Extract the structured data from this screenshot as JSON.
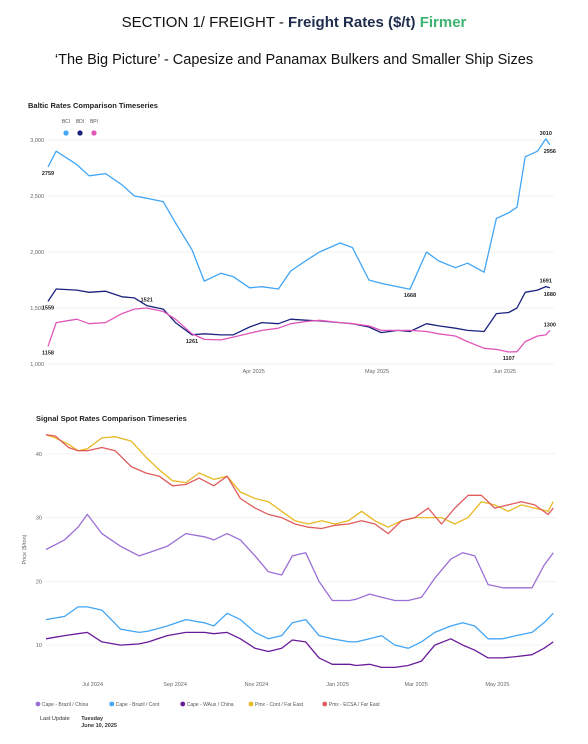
{
  "header": {
    "prefix": "SECTION 1/ FREIGHT - ",
    "main": "Freight Rates ($/t)",
    "accent": "Firmer",
    "subtitle": "‘The Big Picture’ - Capesize and Panamax Bulkers and Smaller Ship Sizes"
  },
  "colors": {
    "accent_green": "#3cb371",
    "title_navy": "#1f2d4d"
  },
  "chart_data": [
    {
      "type": "line",
      "title": "Baltic Rates Comparison Timeseries",
      "x_axis": {
        "ticks": [
          "Apr 2025",
          "May 2025",
          "Jun 2025"
        ],
        "range": [
          "2025-02-10",
          "2025-06-13"
        ]
      },
      "y_axis": {
        "ticks": [
          "1,000",
          "1,500",
          "2,000",
          "2,500",
          "3,000"
        ],
        "range": [
          1000,
          3000
        ]
      },
      "legend_position": "top-left",
      "series": [
        {
          "name": "BCI",
          "color": "#42a5f5",
          "dates": [
            "2025-02-10",
            "2025-02-12",
            "2025-02-17",
            "2025-02-20",
            "2025-02-24",
            "2025-02-28",
            "2025-03-03",
            "2025-03-06",
            "2025-03-10",
            "2025-03-13",
            "2025-03-17",
            "2025-03-20",
            "2025-03-24",
            "2025-03-27",
            "2025-03-31",
            "2025-04-03",
            "2025-04-07",
            "2025-04-10",
            "2025-04-14",
            "2025-04-17",
            "2025-04-22",
            "2025-04-25",
            "2025-04-29",
            "2025-05-02",
            "2025-05-06",
            "2025-05-09",
            "2025-05-13",
            "2025-05-16",
            "2025-05-20",
            "2025-05-23",
            "2025-05-27",
            "2025-05-30",
            "2025-06-02",
            "2025-06-04",
            "2025-06-06",
            "2025-06-09",
            "2025-06-11",
            "2025-06-12"
          ],
          "values": [
            2759,
            2900,
            2780,
            2680,
            2700,
            2600,
            2500,
            2480,
            2450,
            2260,
            2020,
            1740,
            1810,
            1780,
            1680,
            1690,
            1670,
            1830,
            1930,
            2000,
            2080,
            2040,
            1750,
            1720,
            1690,
            1668,
            2000,
            1920,
            1860,
            1900,
            1820,
            2300,
            2350,
            2400,
            2850,
            2900,
            3010,
            2956
          ]
        },
        {
          "name": "BDI",
          "color": "#1a237e",
          "dates": [
            "2025-02-10",
            "2025-02-12",
            "2025-02-17",
            "2025-02-20",
            "2025-02-24",
            "2025-02-28",
            "2025-03-03",
            "2025-03-06",
            "2025-03-10",
            "2025-03-13",
            "2025-03-17",
            "2025-03-20",
            "2025-03-24",
            "2025-03-27",
            "2025-03-31",
            "2025-04-03",
            "2025-04-07",
            "2025-04-10",
            "2025-04-14",
            "2025-04-17",
            "2025-04-22",
            "2025-04-25",
            "2025-04-29",
            "2025-05-02",
            "2025-05-06",
            "2025-05-09",
            "2025-05-13",
            "2025-05-16",
            "2025-05-20",
            "2025-05-23",
            "2025-05-27",
            "2025-05-30",
            "2025-06-02",
            "2025-06-04",
            "2025-06-06",
            "2025-06-09",
            "2025-06-11",
            "2025-06-12"
          ],
          "values": [
            1559,
            1670,
            1660,
            1640,
            1650,
            1600,
            1590,
            1521,
            1490,
            1370,
            1261,
            1270,
            1260,
            1260,
            1330,
            1370,
            1360,
            1400,
            1390,
            1385,
            1370,
            1360,
            1330,
            1280,
            1300,
            1290,
            1360,
            1340,
            1320,
            1300,
            1290,
            1450,
            1460,
            1500,
            1640,
            1660,
            1691,
            1680
          ]
        },
        {
          "name": "BPI",
          "color": "#e056b8",
          "dates": [
            "2025-02-10",
            "2025-02-12",
            "2025-02-17",
            "2025-02-20",
            "2025-02-24",
            "2025-02-28",
            "2025-03-03",
            "2025-03-06",
            "2025-03-10",
            "2025-03-13",
            "2025-03-17",
            "2025-03-20",
            "2025-03-24",
            "2025-03-27",
            "2025-03-31",
            "2025-04-03",
            "2025-04-07",
            "2025-04-10",
            "2025-04-14",
            "2025-04-17",
            "2025-04-22",
            "2025-04-25",
            "2025-04-29",
            "2025-05-02",
            "2025-05-06",
            "2025-05-09",
            "2025-05-13",
            "2025-05-16",
            "2025-05-20",
            "2025-05-23",
            "2025-05-27",
            "2025-05-30",
            "2025-06-02",
            "2025-06-04",
            "2025-06-06",
            "2025-06-09",
            "2025-06-11",
            "2025-06-12"
          ],
          "values": [
            1158,
            1370,
            1400,
            1360,
            1370,
            1450,
            1490,
            1500,
            1470,
            1400,
            1270,
            1220,
            1215,
            1240,
            1275,
            1300,
            1320,
            1360,
            1380,
            1390,
            1370,
            1360,
            1340,
            1300,
            1300,
            1300,
            1290,
            1270,
            1250,
            1200,
            1140,
            1130,
            1107,
            1110,
            1200,
            1250,
            1260,
            1300
          ]
        }
      ],
      "annotations": [
        {
          "label": "2759",
          "series": "BCI",
          "date": "2025-02-10",
          "value": 2759,
          "pos": "below"
        },
        {
          "label": "3010",
          "series": "BCI",
          "date": "2025-06-11",
          "value": 3010,
          "pos": "above"
        },
        {
          "label": "2956",
          "series": "BCI",
          "date": "2025-06-12",
          "value": 2956,
          "pos": "below"
        },
        {
          "label": "1668",
          "series": "BCI",
          "date": "2025-05-09",
          "value": 1668,
          "pos": "below"
        },
        {
          "label": "1559",
          "series": "BDI",
          "date": "2025-02-10",
          "value": 1559,
          "pos": "below"
        },
        {
          "label": "1521",
          "series": "BDI",
          "date": "2025-03-06",
          "value": 1521,
          "pos": "above"
        },
        {
          "label": "1261",
          "series": "BDI",
          "date": "2025-03-17",
          "value": 1261,
          "pos": "below"
        },
        {
          "label": "1691",
          "series": "BDI",
          "date": "2025-06-11",
          "value": 1691,
          "pos": "above"
        },
        {
          "label": "1680",
          "series": "BDI",
          "date": "2025-06-12",
          "value": 1680,
          "pos": "below"
        },
        {
          "label": "1158",
          "series": "BPI",
          "date": "2025-02-10",
          "value": 1158,
          "pos": "below"
        },
        {
          "label": "1107",
          "series": "BPI",
          "date": "2025-06-02",
          "value": 1107,
          "pos": "below"
        },
        {
          "label": "1300",
          "series": "BPI",
          "date": "2025-06-12",
          "value": 1300,
          "pos": "above"
        }
      ]
    },
    {
      "type": "line",
      "title": "Signal Spot Rates Comparison Timeseries",
      "ylabel": "Price ($/ton)",
      "x_axis": {
        "ticks": [
          "Jul 2024",
          "Sep 2024",
          "Nov 2024",
          "Jan 2025",
          "Mar 2025",
          "May 2025"
        ],
        "range": [
          "2024-05-27",
          "2025-06-14"
        ]
      },
      "y_axis": {
        "ticks": [
          "10",
          "20",
          "30",
          "40"
        ],
        "range": [
          5,
          45
        ]
      },
      "legend_position": "bottom",
      "series": [
        {
          "name": "Cape - Brazil / China",
          "color": "#9b6fd6",
          "dates": [
            "2024-05-27",
            "2024-06-10",
            "2024-06-20",
            "2024-06-27",
            "2024-07-08",
            "2024-07-22",
            "2024-08-05",
            "2024-08-12",
            "2024-08-26",
            "2024-09-09",
            "2024-09-23",
            "2024-09-30",
            "2024-10-10",
            "2024-10-20",
            "2024-10-31",
            "2024-11-10",
            "2024-11-20",
            "2024-11-28",
            "2024-12-08",
            "2024-12-18",
            "2024-12-28",
            "2025-01-10",
            "2025-01-15",
            "2025-01-25",
            "2025-02-03",
            "2025-02-13",
            "2025-02-23",
            "2025-03-05",
            "2025-03-15",
            "2025-03-27",
            "2025-04-05",
            "2025-04-14",
            "2025-04-24",
            "2025-05-05",
            "2025-05-15",
            "2025-05-27",
            "2025-06-05",
            "2025-06-12"
          ],
          "values": [
            25,
            26.5,
            28.5,
            30.5,
            27.5,
            25.5,
            24,
            24.5,
            25.5,
            27.5,
            27,
            26.5,
            27.5,
            26.5,
            24,
            21.5,
            21,
            24,
            24.5,
            20,
            17,
            17,
            17.2,
            18,
            17.5,
            17,
            17,
            17.5,
            20.5,
            23.5,
            24.5,
            24,
            19.5,
            19,
            19,
            19,
            22.5,
            24.5
          ]
        },
        {
          "name": "Cape - Brazil / Cont",
          "color": "#42a5f5",
          "dates": [
            "2024-05-27",
            "2024-06-10",
            "2024-06-20",
            "2024-06-27",
            "2024-07-08",
            "2024-07-22",
            "2024-08-05",
            "2024-08-12",
            "2024-08-26",
            "2024-09-09",
            "2024-09-23",
            "2024-09-30",
            "2024-10-10",
            "2024-10-20",
            "2024-10-31",
            "2024-11-10",
            "2024-11-20",
            "2024-11-28",
            "2024-12-08",
            "2024-12-18",
            "2024-12-28",
            "2025-01-10",
            "2025-01-15",
            "2025-01-25",
            "2025-02-03",
            "2025-02-13",
            "2025-02-23",
            "2025-03-05",
            "2025-03-15",
            "2025-03-27",
            "2025-04-05",
            "2025-04-14",
            "2025-04-24",
            "2025-05-05",
            "2025-05-15",
            "2025-05-27",
            "2025-06-05",
            "2025-06-12"
          ],
          "values": [
            14,
            14.5,
            16,
            16,
            15.5,
            12.5,
            12,
            12.2,
            13,
            14,
            13.5,
            13,
            15,
            14,
            12,
            11,
            11.5,
            13.5,
            14,
            11.5,
            11,
            10.5,
            10.5,
            11,
            11.5,
            10,
            9.5,
            10.5,
            12,
            13,
            13.5,
            13,
            11,
            11,
            11.5,
            12,
            13.5,
            15
          ]
        },
        {
          "name": "Cape - WAus / China",
          "color": "#6a1b9a",
          "dates": [
            "2024-05-27",
            "2024-06-10",
            "2024-06-20",
            "2024-06-27",
            "2024-07-08",
            "2024-07-22",
            "2024-08-05",
            "2024-08-12",
            "2024-08-26",
            "2024-09-09",
            "2024-09-23",
            "2024-09-30",
            "2024-10-10",
            "2024-10-20",
            "2024-10-31",
            "2024-11-10",
            "2024-11-20",
            "2024-11-28",
            "2024-12-08",
            "2024-12-18",
            "2024-12-28",
            "2025-01-10",
            "2025-01-15",
            "2025-01-25",
            "2025-02-03",
            "2025-02-13",
            "2025-02-23",
            "2025-03-05",
            "2025-03-15",
            "2025-03-27",
            "2025-04-05",
            "2025-04-14",
            "2025-04-24",
            "2025-05-05",
            "2025-05-15",
            "2025-05-27",
            "2025-06-05",
            "2025-06-12"
          ],
          "values": [
            11,
            11.5,
            11.8,
            12,
            10.5,
            10,
            10.2,
            10.5,
            11.5,
            12,
            12,
            11.8,
            12,
            11,
            9.5,
            9,
            9.5,
            10.8,
            10.5,
            8,
            7,
            7,
            6.8,
            7,
            6.5,
            6.5,
            6.8,
            7.5,
            10,
            11,
            10,
            9.2,
            8,
            8,
            8.2,
            8.5,
            9.5,
            10.5
          ]
        },
        {
          "name": "Pmx - Cont / Far East",
          "color": "#e8b923",
          "dates": [
            "2024-05-27",
            "2024-06-03",
            "2024-06-13",
            "2024-06-20",
            "2024-06-27",
            "2024-07-08",
            "2024-07-18",
            "2024-07-30",
            "2024-08-10",
            "2024-08-20",
            "2024-08-30",
            "2024-09-09",
            "2024-09-19",
            "2024-09-30",
            "2024-10-10",
            "2024-10-20",
            "2024-10-31",
            "2024-11-10",
            "2024-11-20",
            "2024-11-30",
            "2024-12-10",
            "2024-12-20",
            "2024-12-30",
            "2025-01-09",
            "2025-01-19",
            "2025-01-29",
            "2025-02-08",
            "2025-02-18",
            "2025-02-28",
            "2025-03-10",
            "2025-03-20",
            "2025-03-30",
            "2025-04-09",
            "2025-04-19",
            "2025-04-29",
            "2025-05-09",
            "2025-05-19",
            "2025-05-29",
            "2025-06-08",
            "2025-06-12"
          ],
          "values": [
            43,
            42.5,
            41.5,
            40.5,
            40.8,
            42.5,
            42.7,
            42,
            39.5,
            37.5,
            35.8,
            35.5,
            37,
            36,
            36.5,
            34,
            33,
            32.5,
            31,
            29.5,
            29,
            29.5,
            29,
            29.5,
            31,
            29.5,
            28.5,
            29.5,
            30,
            30,
            30,
            29,
            30,
            32.5,
            32,
            31,
            32,
            31.5,
            31,
            32.5
          ]
        },
        {
          "name": "Pmx - ECSA / Far East",
          "color": "#e05c5c",
          "dates": [
            "2024-05-27",
            "2024-06-03",
            "2024-06-13",
            "2024-06-20",
            "2024-06-27",
            "2024-07-08",
            "2024-07-18",
            "2024-07-30",
            "2024-08-10",
            "2024-08-20",
            "2024-08-30",
            "2024-09-09",
            "2024-09-19",
            "2024-09-30",
            "2024-10-10",
            "2024-10-20",
            "2024-10-31",
            "2024-11-10",
            "2024-11-20",
            "2024-11-30",
            "2024-12-10",
            "2024-12-20",
            "2024-12-30",
            "2025-01-09",
            "2025-01-19",
            "2025-01-29",
            "2025-02-08",
            "2025-02-18",
            "2025-02-28",
            "2025-03-10",
            "2025-03-20",
            "2025-03-30",
            "2025-04-09",
            "2025-04-19",
            "2025-04-29",
            "2025-05-09",
            "2025-05-19",
            "2025-05-29",
            "2025-06-08",
            "2025-06-12"
          ],
          "values": [
            43,
            42.8,
            41,
            40.5,
            40.5,
            41,
            40.5,
            38,
            37,
            36.5,
            35,
            35.2,
            36.2,
            35,
            36.5,
            33,
            31.5,
            30.5,
            30,
            29,
            28.5,
            28.3,
            28.8,
            29,
            29.5,
            29,
            27.5,
            29.5,
            30,
            31.5,
            29,
            31.5,
            33.5,
            33.5,
            31.5,
            32,
            32.5,
            32,
            30.5,
            31.5
          ]
        }
      ]
    }
  ],
  "footer": {
    "last_update_label": "Last Update",
    "day": "Tuesday",
    "date": "June 10, 2025"
  }
}
